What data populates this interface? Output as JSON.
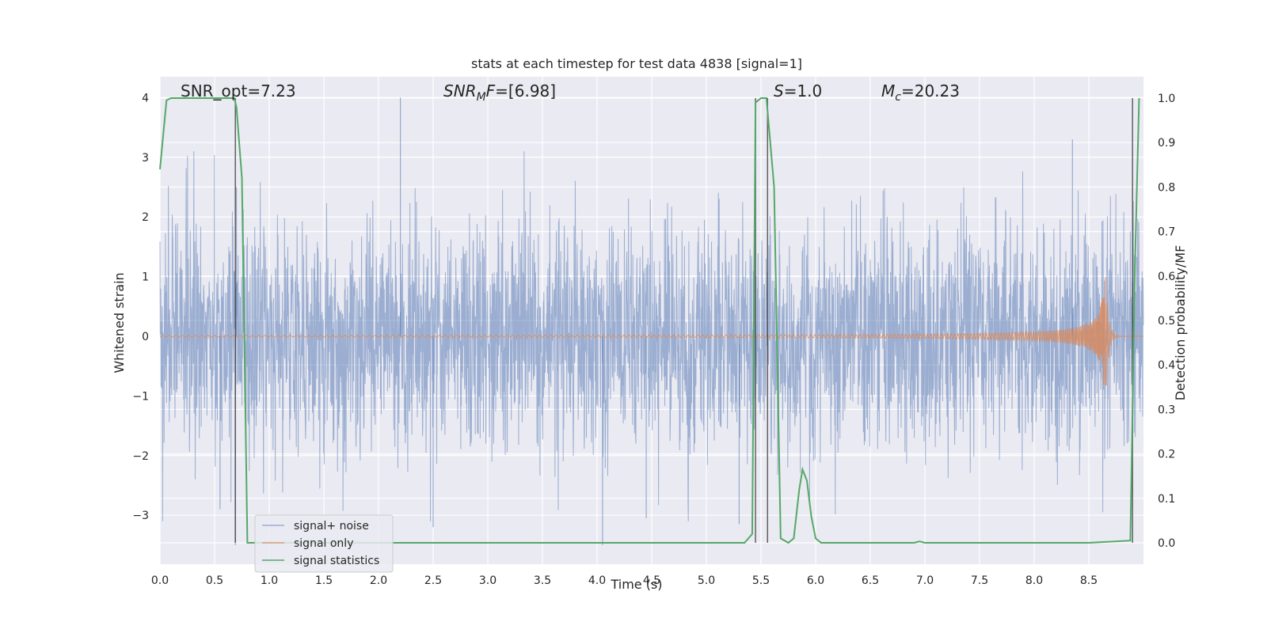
{
  "chart_data": {
    "type": "line",
    "title": "stats at each timestep for test data 4838 [signal=1]",
    "xlabel": "Time (s)",
    "ylabel_left": "Whitened strain",
    "ylabel_right": "Detection probability/MF",
    "xlim": [
      0.0,
      9.0
    ],
    "ylim_left": [
      -3.82,
      4.35
    ],
    "ylim_right": [
      -0.048,
      1.048
    ],
    "x_ticks": [
      "0.0",
      "0.5",
      "1.0",
      "1.5",
      "2.0",
      "2.5",
      "3.0",
      "3.5",
      "4.0",
      "4.5",
      "5.0",
      "5.5",
      "6.0",
      "6.5",
      "7.0",
      "7.5",
      "8.0",
      "8.5"
    ],
    "x_tick_values": [
      0.0,
      0.5,
      1.0,
      1.5,
      2.0,
      2.5,
      3.0,
      3.5,
      4.0,
      4.5,
      5.0,
      5.5,
      6.0,
      6.5,
      7.0,
      7.5,
      8.0,
      8.5
    ],
    "y_left_ticks": [
      "−3",
      "−2",
      "−1",
      "0",
      "1",
      "2",
      "3",
      "4"
    ],
    "y_left_tick_values": [
      -3,
      -2,
      -1,
      0,
      1,
      2,
      3,
      4
    ],
    "y_right_ticks": [
      "0.0",
      "0.1",
      "0.2",
      "0.3",
      "0.4",
      "0.5",
      "0.6",
      "0.7",
      "0.8",
      "0.9",
      "1.0"
    ],
    "y_right_tick_values": [
      0.0,
      0.1,
      0.2,
      0.3,
      0.4,
      0.5,
      0.6,
      0.7,
      0.8,
      0.9,
      1.0
    ],
    "grid": true,
    "legend_position": "bottom-left",
    "annotations": [
      {
        "text": "SNR_opt=7.23",
        "x": 0.18
      },
      {
        "text": "SNR_MF=[6.98]",
        "x": 2.6
      },
      {
        "text": "S=1.0",
        "x": 5.6
      },
      {
        "text": "M_c=20.23",
        "x": 6.6
      }
    ],
    "vertical_lines": [
      0.69,
      5.45,
      5.56,
      8.9
    ],
    "series": [
      {
        "name": "signal+ noise",
        "axis": "left",
        "color": "#4c72b0",
        "description": "whitened noise plus signal, amplitude mostly within ±2, peaks to about ±4",
        "seed": 4838,
        "spike_times": [
          0.55,
          0.69,
          0.7,
          2.2,
          2.5,
          4.05,
          4.45,
          5.3,
          8.35
        ],
        "spike_values": [
          -2.9,
          -3.5,
          2.5,
          4.0,
          -3.2,
          -3.5,
          -3.05,
          -3.15,
          3.3
        ]
      },
      {
        "name": "signal only",
        "axis": "left",
        "color": "#dd8452",
        "description": "chirp signal, tiny amplitude growing to about ±1.3 at merger near 8.65 s",
        "merger_time": 8.65,
        "peak_amplitude": 1.3
      },
      {
        "name": "signal statistics",
        "axis": "right",
        "color": "#55a868",
        "x": [
          0.0,
          0.06,
          0.1,
          0.2,
          0.68,
          0.7,
          0.75,
          0.8,
          0.9,
          1.0,
          5.35,
          5.42,
          5.45,
          5.5,
          5.55,
          5.62,
          5.68,
          5.75,
          5.8,
          5.85,
          5.88,
          5.92,
          5.96,
          6.0,
          6.05,
          6.5,
          6.9,
          6.95,
          7.0,
          8.5,
          8.88,
          8.92,
          8.96
        ],
        "y": [
          0.84,
          0.995,
          1.0,
          1.0,
          1.0,
          0.98,
          0.82,
          0.0,
          0.0,
          0.0,
          0.0,
          0.02,
          0.99,
          1.0,
          1.0,
          0.8,
          0.01,
          0.0,
          0.01,
          0.12,
          0.165,
          0.14,
          0.06,
          0.01,
          0.0,
          0.0,
          0.0,
          0.003,
          0.0,
          0.0,
          0.005,
          0.6,
          1.0
        ]
      }
    ]
  }
}
